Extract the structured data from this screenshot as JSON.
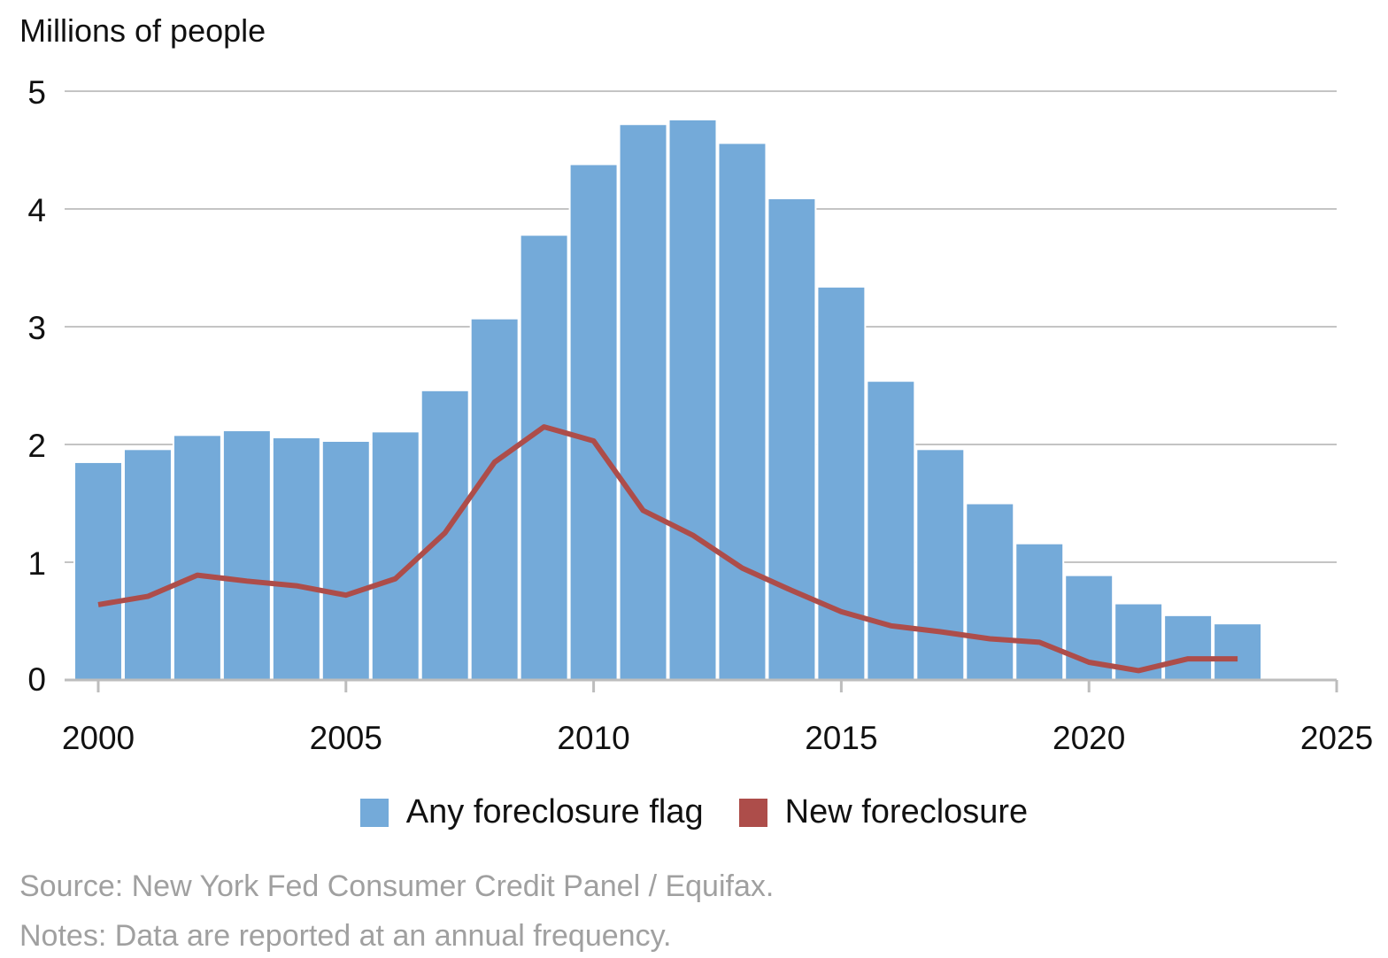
{
  "chart_data": {
    "type": "bar",
    "title": "",
    "ylabel": "Millions of people",
    "xlabel": "",
    "xlim": [
      1999.5,
      2025
    ],
    "ylim": [
      0,
      5
    ],
    "x_ticks": [
      "2000",
      "2005",
      "2010",
      "2015",
      "2020",
      "2025"
    ],
    "y_ticks": [
      "0",
      "1",
      "2",
      "3",
      "4",
      "5"
    ],
    "grid": true,
    "legend_position": "bottom-center",
    "years": [
      2000,
      2001,
      2002,
      2003,
      2004,
      2005,
      2006,
      2007,
      2008,
      2009,
      2010,
      2011,
      2012,
      2013,
      2014,
      2015,
      2016,
      2017,
      2018,
      2019,
      2020,
      2021,
      2022,
      2023
    ],
    "series": [
      {
        "name": "Any foreclosure flag",
        "type": "bar",
        "color": "#74aad9",
        "values": [
          1.85,
          1.96,
          2.08,
          2.12,
          2.06,
          2.03,
          2.11,
          2.46,
          3.07,
          3.78,
          4.38,
          4.72,
          4.76,
          4.56,
          4.09,
          3.34,
          2.54,
          1.96,
          1.5,
          1.16,
          0.89,
          0.65,
          0.55,
          0.48
        ]
      },
      {
        "name": "New foreclosure",
        "type": "line",
        "color": "#ad4d4a",
        "values": [
          0.64,
          0.71,
          0.89,
          0.84,
          0.8,
          0.72,
          0.86,
          1.25,
          1.85,
          2.15,
          2.03,
          1.44,
          1.23,
          0.95,
          0.76,
          0.58,
          0.46,
          0.41,
          0.35,
          0.32,
          0.15,
          0.08,
          0.18,
          0.18
        ]
      }
    ]
  },
  "legend": {
    "bar_label": "Any foreclosure flag",
    "line_label": "New foreclosure"
  },
  "footer": {
    "source": "Source: New York Fed Consumer Credit Panel / Equifax.",
    "notes": "Notes: Data are reported at an annual frequency."
  }
}
